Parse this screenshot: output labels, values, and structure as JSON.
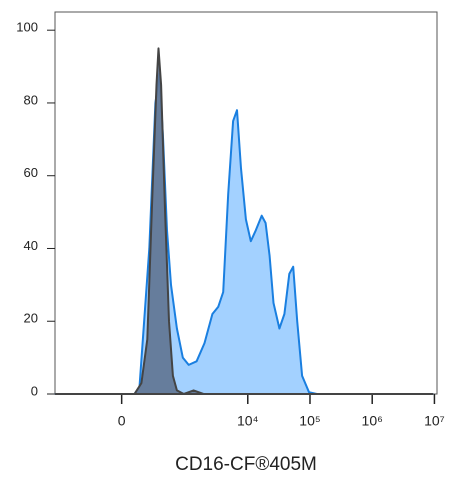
{
  "chart_data": {
    "type": "area",
    "x_label": "CD16-CF®405M",
    "xscale": "biexponential",
    "xlim": [
      -1100,
      11000000
    ],
    "xticks": [
      0,
      {
        "value": 10000,
        "label": "10⁴"
      },
      {
        "value": 100000,
        "label": "10⁵"
      },
      {
        "value": 1000000,
        "label": "10⁶"
      },
      {
        "value": 10000000,
        "label": "10⁷"
      }
    ],
    "ylim": [
      0,
      105
    ],
    "yticks": [
      0,
      20,
      40,
      60,
      80,
      100
    ],
    "series": [
      {
        "color": "#1a7fe0",
        "fill": "#99ccff",
        "x": [
          -1080,
          93,
          133,
          228,
          301,
          358,
          415,
          486,
          568,
          713,
          894,
          1116,
          1500,
          2012,
          2698,
          3360,
          4033,
          4841,
          5809,
          6721,
          7783,
          9344,
          11205,
          13461,
          16741,
          19364,
          22410,
          25925,
          32261,
          38728,
          46492,
          53806,
          62266,
          74749,
          96444,
          129250,
          9300000
        ],
        "values": [
          0,
          0,
          2,
          40,
          80,
          88,
          70,
          45,
          30,
          18,
          10,
          8,
          9,
          14,
          22,
          24,
          28,
          55,
          75,
          78,
          62,
          48,
          42,
          45,
          49,
          47,
          38,
          25,
          18,
          22,
          33,
          35,
          20,
          5,
          0.5,
          0,
          0
        ]
      },
      {
        "color": "#444444",
        "fill": "#5f7391",
        "x": [
          -1080,
          93,
          150,
          206,
          263,
          315,
          343,
          383,
          450,
          526,
          613,
          713,
          927,
          1342,
          1940,
          9300000
        ],
        "values": [
          0,
          0,
          3,
          15,
          55,
          85,
          95,
          85,
          50,
          20,
          5,
          1,
          0,
          1,
          0,
          0
        ]
      }
    ]
  }
}
